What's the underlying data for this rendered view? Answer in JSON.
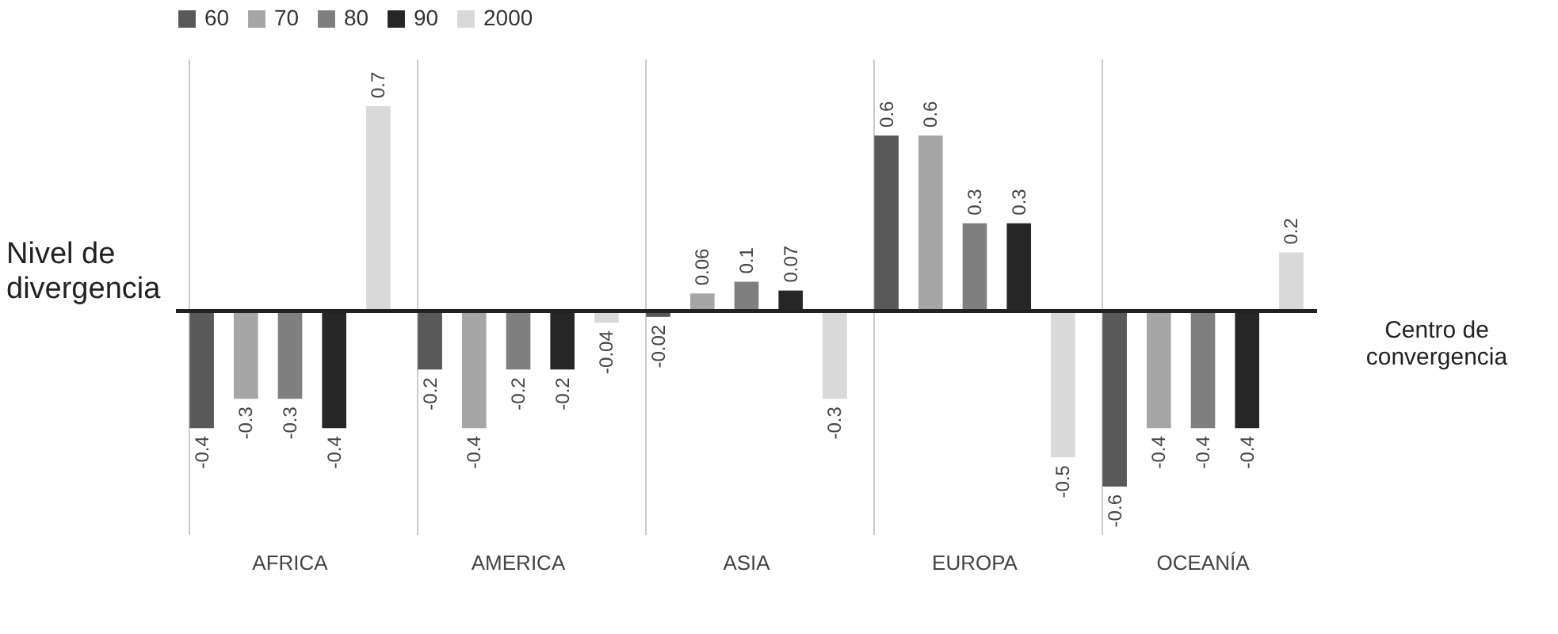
{
  "chart_data": {
    "type": "bar",
    "ylabel": "Nivel de divergencia",
    "annotations": [
      "Centro de convergencia"
    ],
    "categories": [
      "AFRICA",
      "AMERICA",
      "ASIA",
      "EUROPA",
      "OCEANÍA"
    ],
    "series": [
      {
        "name": "60",
        "color": "#595959",
        "values": [
          -0.4,
          -0.2,
          -0.02,
          0.6,
          -0.6
        ]
      },
      {
        "name": "70",
        "color": "#a6a6a6",
        "values": [
          -0.3,
          -0.4,
          0.06,
          0.6,
          -0.4
        ]
      },
      {
        "name": "80",
        "color": "#7f7f7f",
        "values": [
          -0.3,
          -0.2,
          0.1,
          0.3,
          -0.4
        ]
      },
      {
        "name": "90",
        "color": "#262626",
        "values": [
          -0.4,
          -0.2,
          0.07,
          0.3,
          -0.4
        ]
      },
      {
        "name": "2000",
        "color": "#d9d9d9",
        "values": [
          0.7,
          -0.04,
          -0.3,
          -0.5,
          0.2
        ]
      }
    ],
    "data_labels": true,
    "legend": "top",
    "grid": "x"
  }
}
